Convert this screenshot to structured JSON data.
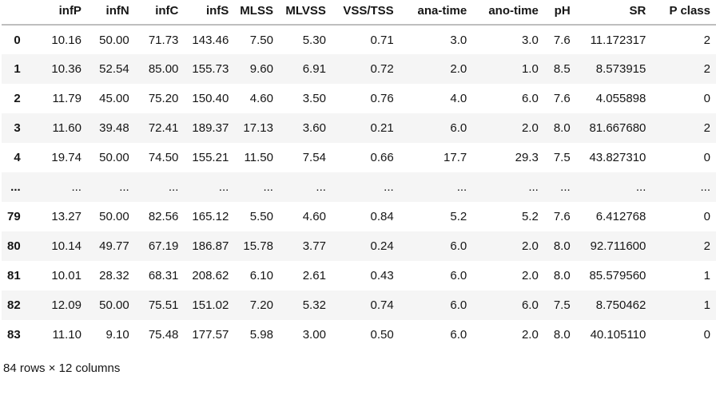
{
  "colors": {
    "background": "#ffffff",
    "text": "#161616",
    "row_stripe": "#f5f5f5",
    "header_border": "#bfbfbf"
  },
  "footer": {
    "summary": "84 rows × 12 columns"
  },
  "chart_data": {
    "type": "table",
    "title": "",
    "index_header": "",
    "columns": [
      "infP",
      "infN",
      "infC",
      "infS",
      "MLSS",
      "MLVSS",
      "VSS/TSS",
      "ana-time",
      "ano-time",
      "pH",
      "SR",
      "P class"
    ],
    "index": [
      "0",
      "1",
      "2",
      "3",
      "4",
      "...",
      "79",
      "80",
      "81",
      "82",
      "83"
    ],
    "rows": [
      [
        "10.16",
        "50.00",
        "71.73",
        "143.46",
        "7.50",
        "5.30",
        "0.71",
        "3.0",
        "3.0",
        "7.6",
        "11.172317",
        "2"
      ],
      [
        "10.36",
        "52.54",
        "85.00",
        "155.73",
        "9.60",
        "6.91",
        "0.72",
        "2.0",
        "1.0",
        "8.5",
        "8.573915",
        "2"
      ],
      [
        "11.79",
        "45.00",
        "75.20",
        "150.40",
        "4.60",
        "3.50",
        "0.76",
        "4.0",
        "6.0",
        "7.6",
        "4.055898",
        "0"
      ],
      [
        "11.60",
        "39.48",
        "72.41",
        "189.37",
        "17.13",
        "3.60",
        "0.21",
        "6.0",
        "2.0",
        "8.0",
        "81.667680",
        "2"
      ],
      [
        "19.74",
        "50.00",
        "74.50",
        "155.21",
        "11.50",
        "7.54",
        "0.66",
        "17.7",
        "29.3",
        "7.5",
        "43.827310",
        "0"
      ],
      [
        "...",
        "...",
        "...",
        "...",
        "...",
        "...",
        "...",
        "...",
        "...",
        "...",
        "...",
        "..."
      ],
      [
        "13.27",
        "50.00",
        "82.56",
        "165.12",
        "5.50",
        "4.60",
        "0.84",
        "5.2",
        "5.2",
        "7.6",
        "6.412768",
        "0"
      ],
      [
        "10.14",
        "49.77",
        "67.19",
        "186.87",
        "15.78",
        "3.77",
        "0.24",
        "6.0",
        "2.0",
        "8.0",
        "92.711600",
        "2"
      ],
      [
        "10.01",
        "28.32",
        "68.31",
        "208.62",
        "6.10",
        "2.61",
        "0.43",
        "6.0",
        "2.0",
        "8.0",
        "85.579560",
        "1"
      ],
      [
        "12.09",
        "50.00",
        "75.51",
        "151.02",
        "7.20",
        "5.32",
        "0.74",
        "6.0",
        "6.0",
        "7.5",
        "8.750462",
        "1"
      ],
      [
        "11.10",
        "9.10",
        "75.48",
        "177.57",
        "5.98",
        "3.00",
        "0.50",
        "6.0",
        "2.0",
        "8.0",
        "40.105110",
        "0"
      ]
    ],
    "footer": "84 rows × 12 columns",
    "total_rows": 84,
    "total_columns": 12,
    "layout": {
      "grid": false,
      "row_striping": "even",
      "alignment": "right"
    }
  }
}
